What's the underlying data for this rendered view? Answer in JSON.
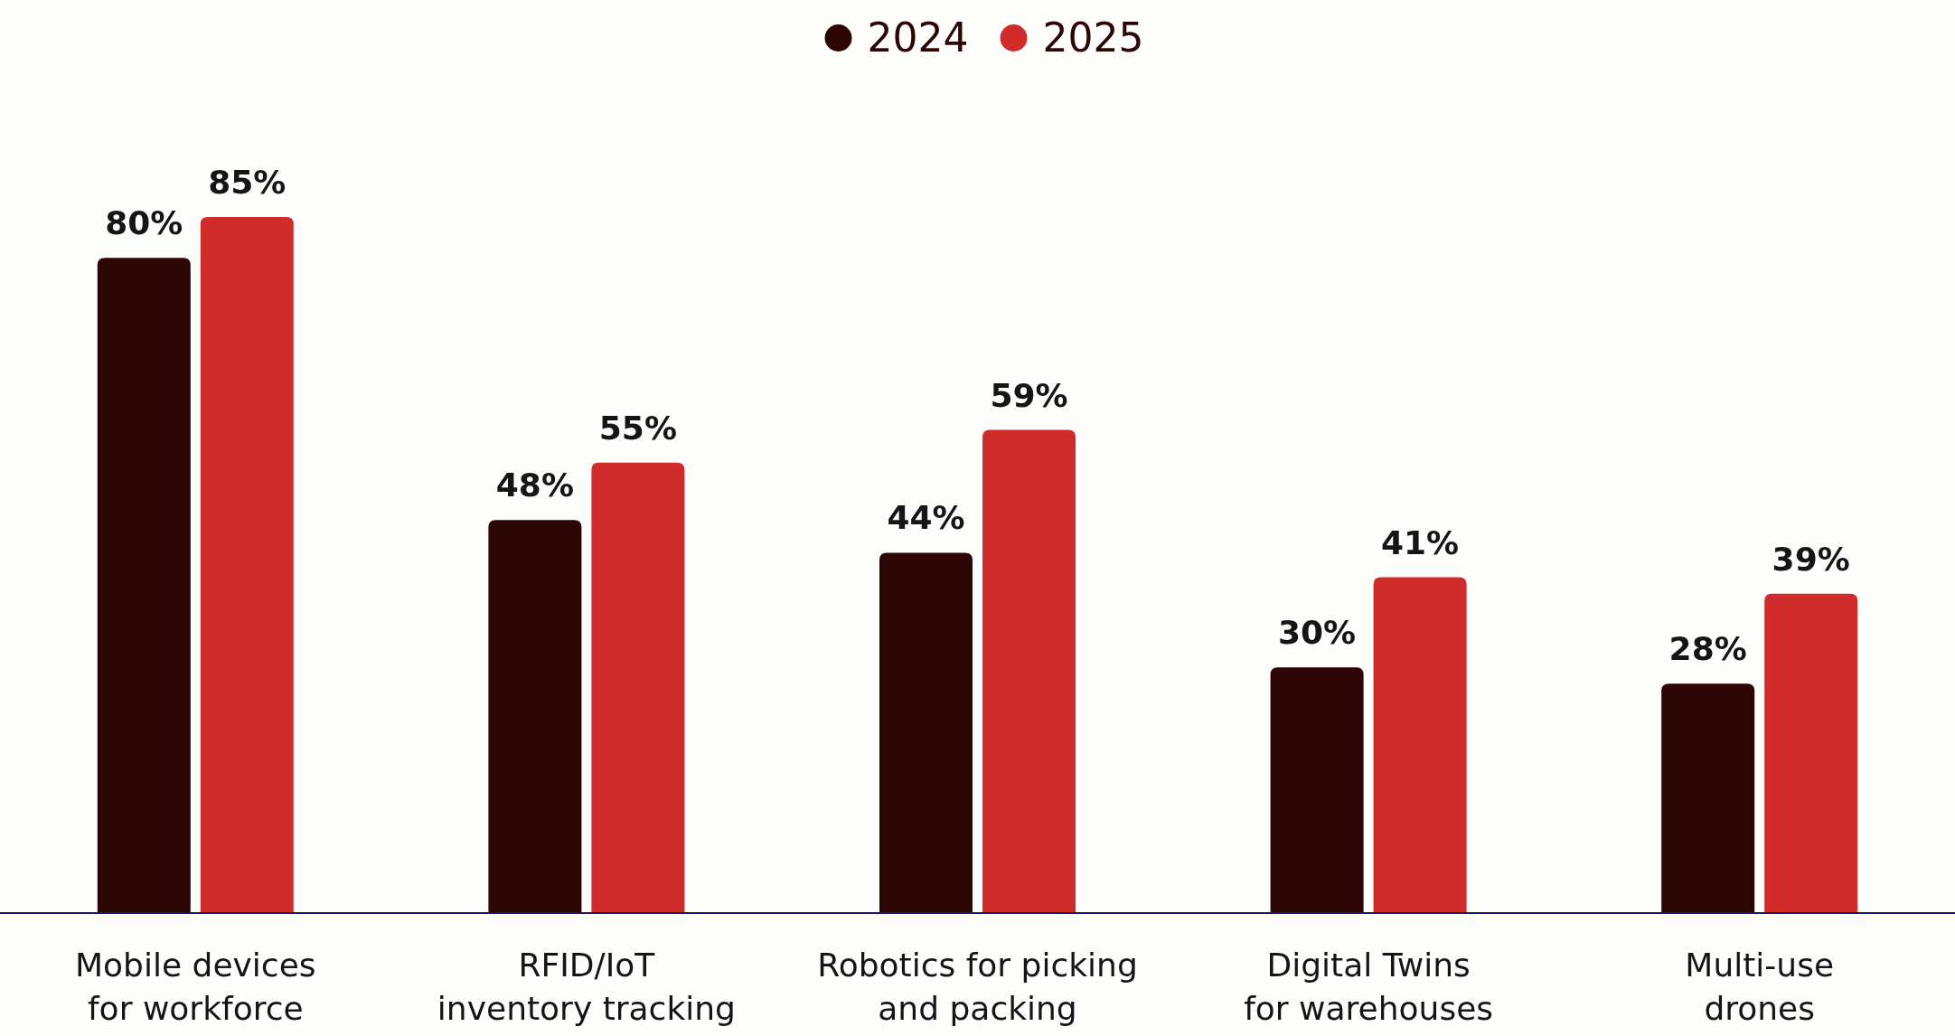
{
  "chart_data": {
    "type": "bar",
    "categories": [
      "Mobile devices for workforce",
      "RFID/IoT inventory tracking",
      "Robotics for picking and packing",
      "Digital Twins for warehouses",
      "Multi-use drones"
    ],
    "series": [
      {
        "name": "2024",
        "color": "#2d0504",
        "values": [
          80,
          48,
          44,
          30,
          28
        ],
        "value_labels": [
          "80%",
          "48%",
          "44%",
          "30%",
          "28%"
        ]
      },
      {
        "name": "2025",
        "color": "#d02c2c",
        "values": [
          85,
          55,
          59,
          41,
          39
        ],
        "value_labels": [
          "85%",
          "55%",
          "59%",
          "41%",
          "39%"
        ]
      }
    ],
    "legend": "top",
    "grid": false
  }
}
